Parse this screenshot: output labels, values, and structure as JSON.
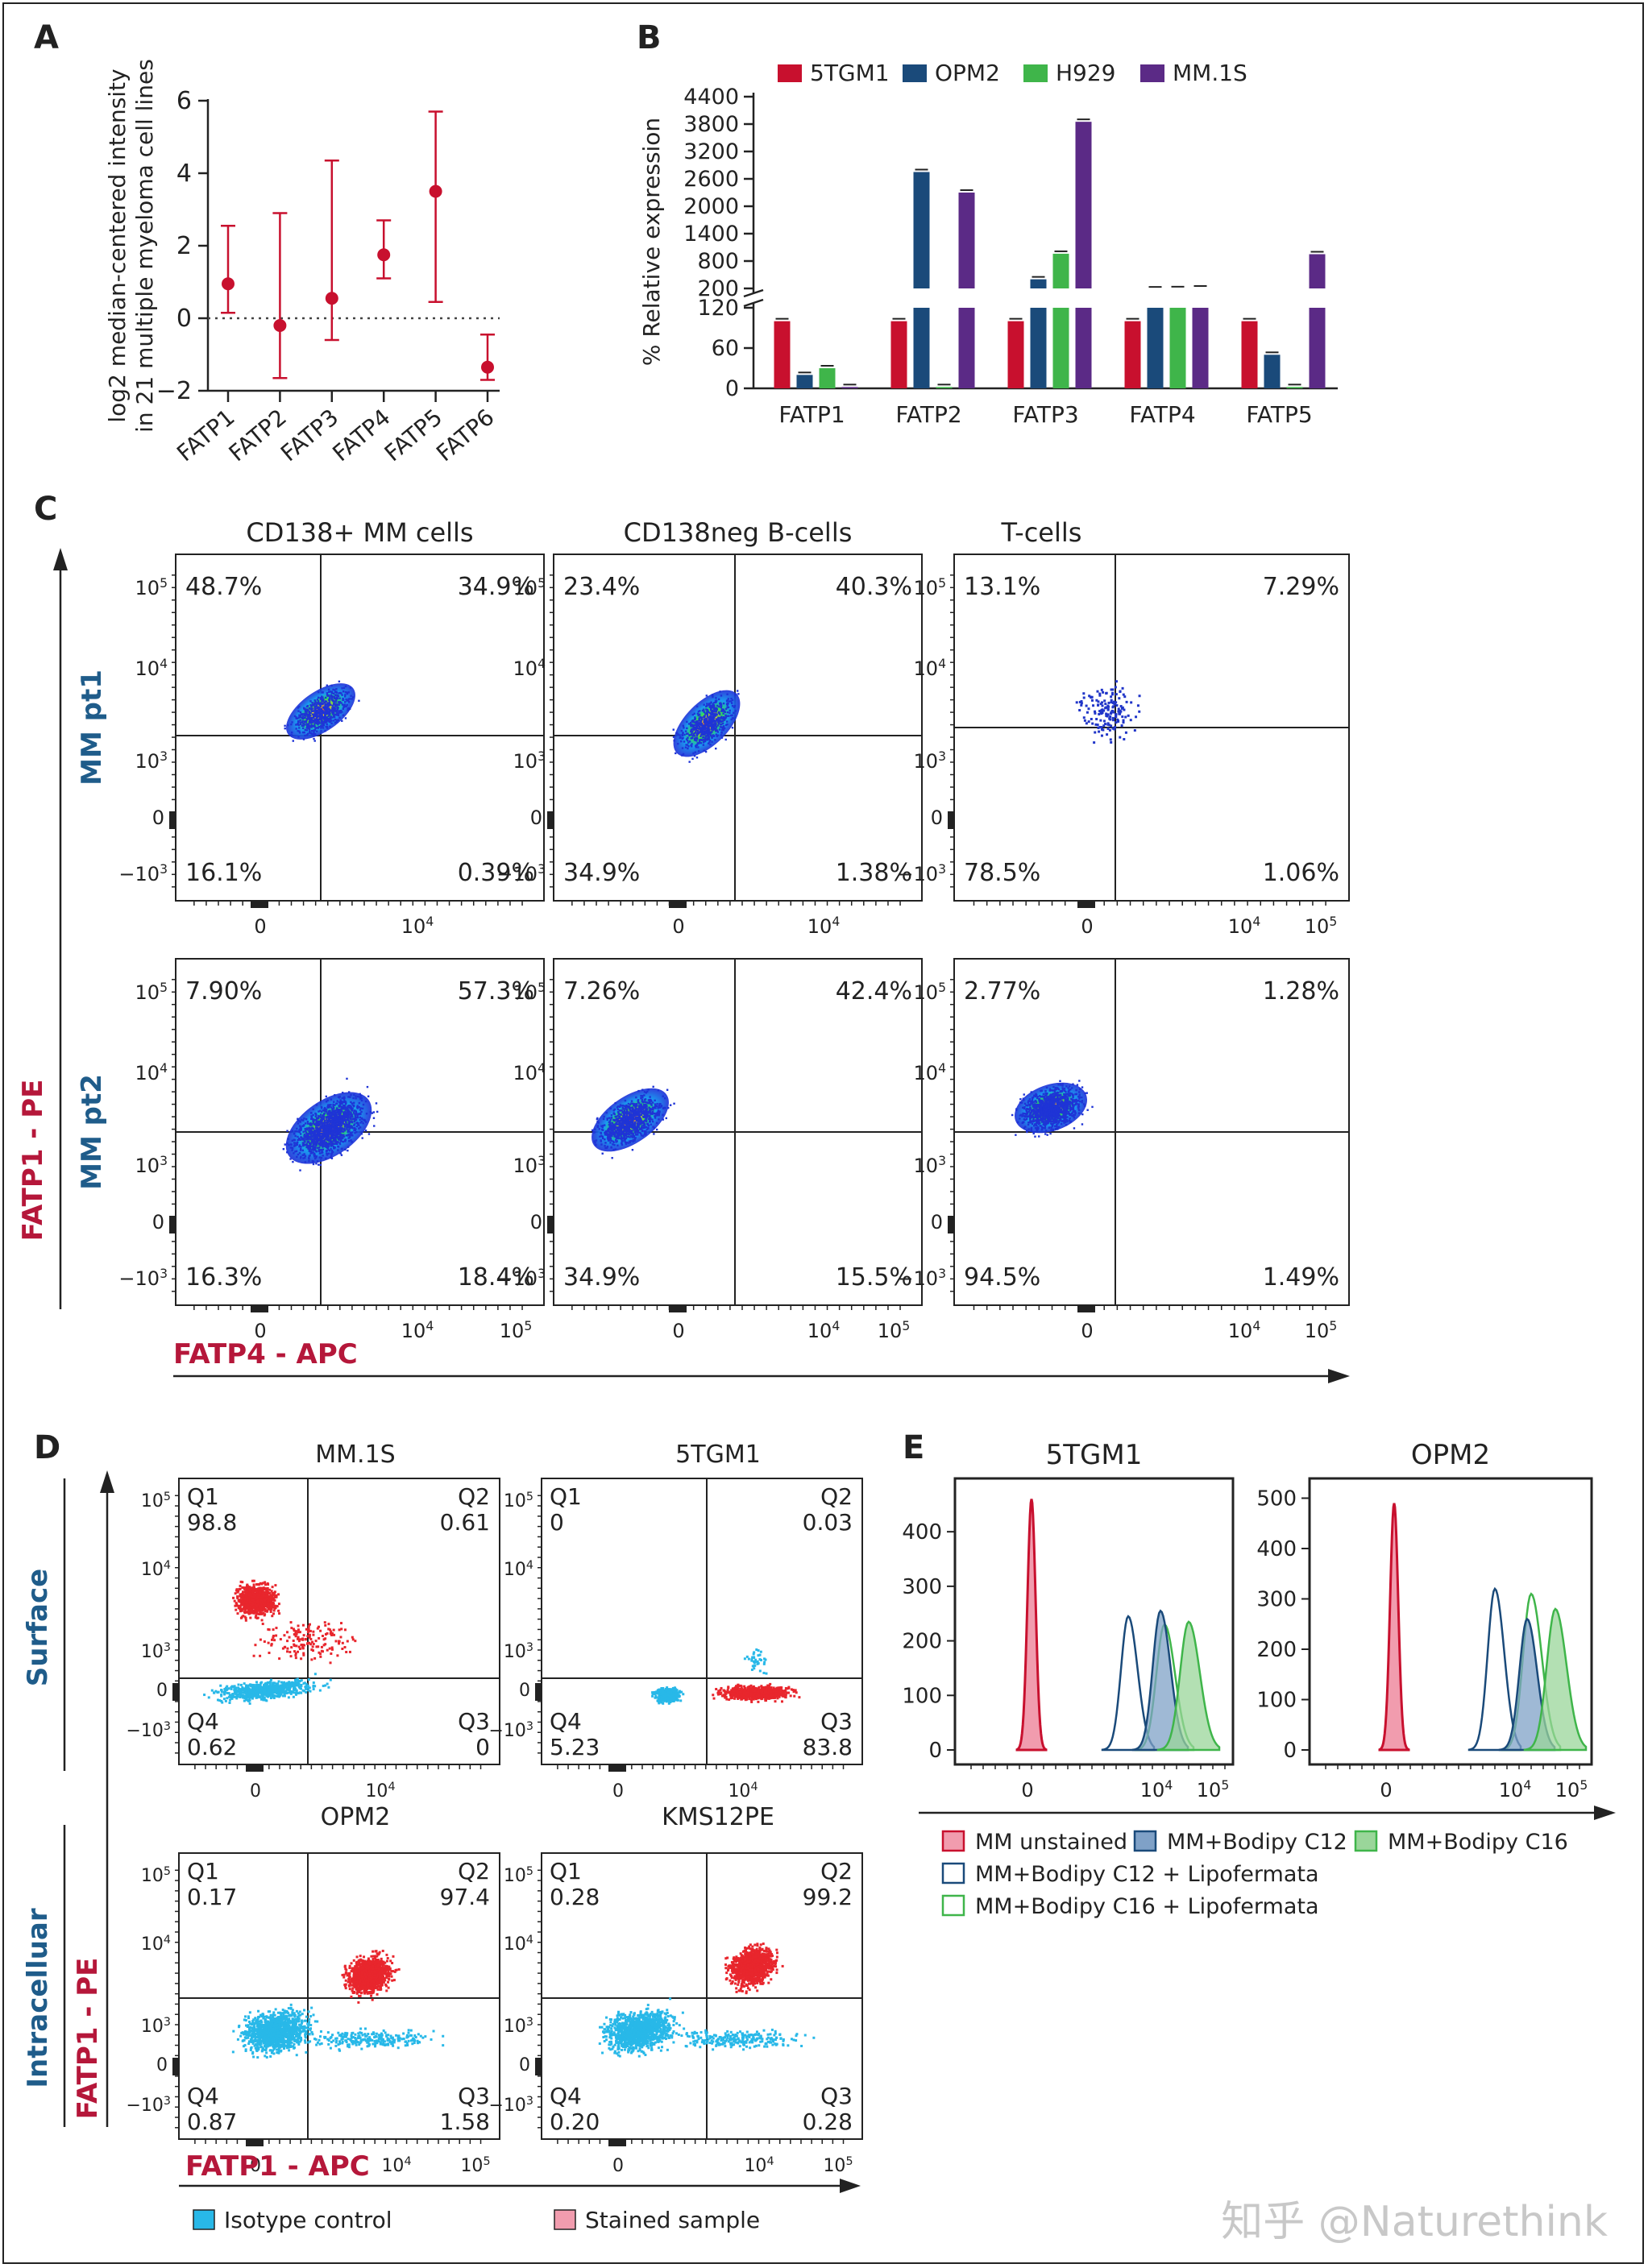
{
  "panel_letters": [
    "A",
    "B",
    "C",
    "D",
    "E"
  ],
  "colors": {
    "red": "#c8102e",
    "navy": "#1a4a7a",
    "green": "#3fb54a",
    "purple": "#5b2a86",
    "dot_red": "#e8262d",
    "dot_cyan": "#28b8e8",
    "axis_label_red": "#b5173a",
    "axis_label_blue": "#1f5c8a",
    "blue_fill": "#7fa1c7",
    "green_fill": "#9ad69a",
    "pink_fill": "#f19cae"
  },
  "chart_data": [
    {
      "panel": "A",
      "type": "scatter",
      "title": "",
      "xlabel": "",
      "ylabel_lines": [
        "log2 median-centered intensity",
        "in 21 multiple myeloma cell lines"
      ],
      "categories": [
        "FATP1",
        "FATP2",
        "FATP3",
        "FATP4",
        "FATP5",
        "FATP6"
      ],
      "series": [
        {
          "values": [
            0.95,
            -0.2,
            0.55,
            1.75,
            3.5,
            -1.35
          ],
          "upper": [
            2.55,
            2.9,
            4.35,
            2.7,
            5.7,
            -0.45
          ],
          "lower": [
            0.15,
            -1.65,
            -0.6,
            1.1,
            0.45,
            -1.7
          ]
        }
      ],
      "ylim": [
        -2,
        6
      ],
      "yticks": [
        "6",
        "4",
        "2",
        "0",
        "−2"
      ],
      "reference_line": 0
    },
    {
      "panel": "B",
      "type": "bar",
      "ylabel": "% Relative expression",
      "categories": [
        "FATP1",
        "FATP2",
        "FATP3",
        "FATP4",
        "FATP5"
      ],
      "series": [
        {
          "name": "5TGM1",
          "values": [
            100,
            100,
            100,
            100,
            100
          ]
        },
        {
          "name": "OPM2",
          "values": [
            20,
            2750,
            400,
            180,
            50
          ]
        },
        {
          "name": "H929",
          "values": [
            30,
            2,
            960,
            185,
            2
          ]
        },
        {
          "name": "MM.1S",
          "values": [
            2,
            2300,
            3850,
            200,
            950
          ]
        }
      ],
      "broken_axis": {
        "lower_max": 120,
        "upper_min": 120,
        "upper_max": 4400
      },
      "yticks_lower": [
        "120",
        "60",
        "0"
      ],
      "yticks_upper": [
        "4400",
        "3800",
        "3200",
        "2600",
        "2000",
        "1400",
        "800",
        "200"
      ],
      "legend_position": "top"
    },
    {
      "panel": "C",
      "type": "scatter",
      "subtype": "flow cytometry quadrant plots",
      "columns": [
        "CD138+ MM cells",
        "CD138neg B-cells",
        "T-cells"
      ],
      "rows": [
        "MM pt1",
        "MM pt2"
      ],
      "xlabel": "FATP4 - APC",
      "ylabel": "FATP1 - PE",
      "quadrant_percentages": [
        [
          {
            "UL": "48.7%",
            "UR": "34.9%",
            "LL": "16.1%",
            "LR": "0.39%"
          },
          {
            "UL": "23.4%",
            "UR": "40.3%",
            "LL": "34.9%",
            "LR": "1.38%"
          },
          {
            "UL": "13.1%",
            "UR": "7.29%",
            "LL": "78.5%",
            "LR": "1.06%"
          }
        ],
        [
          {
            "UL": "7.90%",
            "UR": "57.3%",
            "LL": "16.3%",
            "LR": "18.4%"
          },
          {
            "UL": "7.26%",
            "UR": "42.4%",
            "LL": "34.9%",
            "LR": "15.5%"
          },
          {
            "UL": "2.77%",
            "UR": "1.28%",
            "LL": "94.5%",
            "LR": "1.49%"
          }
        ]
      ]
    },
    {
      "panel": "D",
      "type": "scatter",
      "subtype": "flow cytometry quadrant plots",
      "plots": [
        {
          "title": "MM.1S",
          "Q1": "98.8",
          "Q2": "0.61",
          "Q3": "0",
          "Q4": "0.62"
        },
        {
          "title": "5TGM1",
          "Q1": "0",
          "Q2": "0.03",
          "Q3": "83.8",
          "Q4": "5.23"
        },
        {
          "title": "OPM2",
          "Q1": "0.17",
          "Q2": "97.4",
          "Q3": "1.58",
          "Q4": "0.87"
        },
        {
          "title": "KMS12PE",
          "Q1": "0.28",
          "Q2": "99.2",
          "Q3": "0.28",
          "Q4": "0.20"
        }
      ],
      "row_labels": [
        "Surface",
        "Intracelluar"
      ],
      "xlabel": "FATP1 - APC",
      "ylabel": "FATP1 - PE",
      "legend": [
        "Isotype control",
        "Stained sample"
      ]
    },
    {
      "panel": "E",
      "type": "area",
      "subtype": "flow cytometry histograms",
      "plots": [
        {
          "title": "5TGM1",
          "yticks": [
            "400",
            "300",
            "200",
            "100",
            "0"
          ],
          "ylim": [
            0,
            480
          ]
        },
        {
          "title": "OPM2",
          "yticks": [
            "500",
            "400",
            "300",
            "200",
            "100",
            "0"
          ],
          "ylim": [
            0,
            520
          ]
        }
      ],
      "legend": [
        "MM unstained",
        "MM+Bodipy C12",
        "MM+Bodipy C16",
        "MM+Bodipy C12 + Lipofermata",
        "MM+Bodipy C16 + Lipofermata"
      ]
    }
  ],
  "flow_ticks": {
    "t1e5": "10",
    "t1e4": "10",
    "t1e3": "10",
    "tneg": "−10",
    "zero": "0",
    "sup5": "5",
    "sup4": "4",
    "sup3": "3"
  },
  "watermark": "知乎 @Naturethink"
}
